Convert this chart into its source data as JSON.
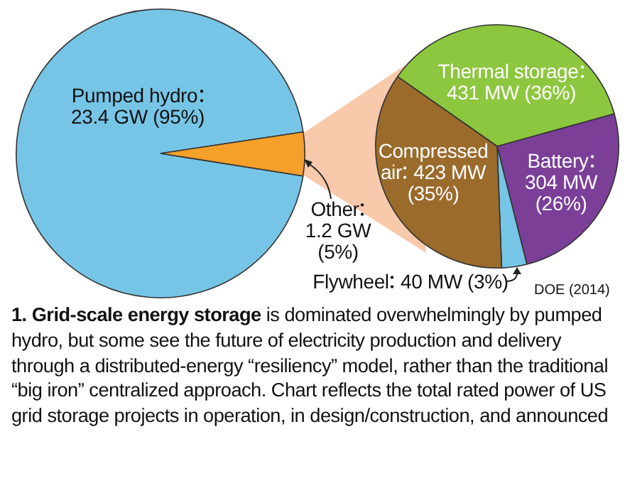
{
  "chart_data": [
    {
      "type": "pie",
      "categories": [
        "Pumped hydro",
        "Other"
      ],
      "values": [
        23.4,
        1.2
      ],
      "value_labels": [
        "23.4 GW (95%)",
        "1.2 GW (5%)"
      ],
      "colors": [
        "#77c5e6",
        "#f5a02a"
      ],
      "annotations": [
        "1. Grid-scale energy storage",
        "is dominated overwhelmingly by pumped hydro, but some see the future of electricity production and delivery through a distributed-energy “resiliency” model, rather than the traditional “big iron” centralized approach. Chart reflects the total rated power of US grid storage projects in operation, in design/construction, and announced"
      ]
    },
    {
      "type": "pie",
      "categories": [
        "Thermal storage",
        "Battery",
        "Flywheel",
        "Compressed air"
      ],
      "values": [
        431,
        304,
        40,
        423
      ],
      "value_labels": [
        "431 MW (36%)",
        "304 MW (26%)",
        "40 MW (3%)",
        "423 MW (35%)"
      ],
      "colors": [
        "#8dc63f",
        "#7b3f98",
        "#77c5e6",
        "#9b6b2c"
      ],
      "annotations": [
        "DOE (2014)"
      ]
    }
  ]
}
